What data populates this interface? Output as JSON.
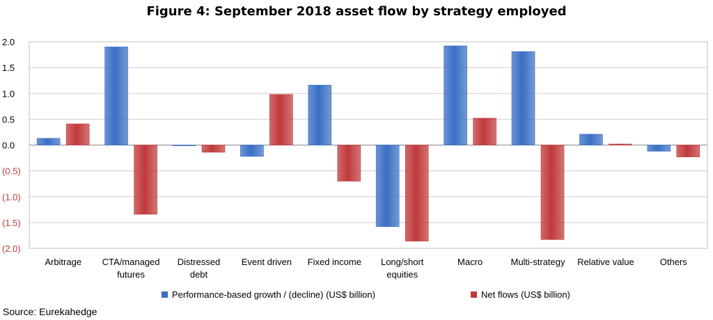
{
  "chart_data": {
    "type": "bar",
    "title": "Figure 4: September 2018 asset flow by strategy employed",
    "categories": [
      [
        "Arbitrage"
      ],
      [
        "CTA/managed",
        "futures"
      ],
      [
        "Distressed",
        "debt"
      ],
      [
        "Event driven"
      ],
      [
        "Fixed income"
      ],
      [
        "Long/short",
        "equities"
      ],
      [
        "Macro"
      ],
      [
        "Multi-strategy"
      ],
      [
        "Relative value"
      ],
      [
        "Others"
      ]
    ],
    "series": [
      {
        "name": "Performance-based growth / (decline) (US$ billion)",
        "color": "#3a6fc4",
        "values": [
          0.13,
          1.9,
          -0.01,
          -0.22,
          1.16,
          -1.58,
          1.92,
          1.81,
          0.21,
          -0.12
        ]
      },
      {
        "name": "Net flows (US$ billion)",
        "color": "#c0393b",
        "values": [
          0.41,
          -1.34,
          -0.14,
          0.98,
          -0.7,
          -1.86,
          0.52,
          -1.83,
          0.02,
          -0.23
        ]
      }
    ],
    "ylim": [
      -2.0,
      2.0
    ],
    "yticks": [
      {
        "value": 2.0,
        "label": "2.0"
      },
      {
        "value": 1.5,
        "label": "1.5"
      },
      {
        "value": 1.0,
        "label": "1.0"
      },
      {
        "value": 0.5,
        "label": "0.5"
      },
      {
        "value": 0.0,
        "label": "0.0"
      },
      {
        "value": -0.5,
        "label": "(0.5)"
      },
      {
        "value": -1.0,
        "label": "(1.0)"
      },
      {
        "value": -1.5,
        "label": "(1.5)"
      },
      {
        "value": -2.0,
        "label": "(2.0)"
      }
    ],
    "negative_tick_color": "#c0393b",
    "grid": true,
    "xlabel": "",
    "ylabel": "",
    "legend_position": "bottom"
  },
  "source": "Source: Eurekahedge"
}
